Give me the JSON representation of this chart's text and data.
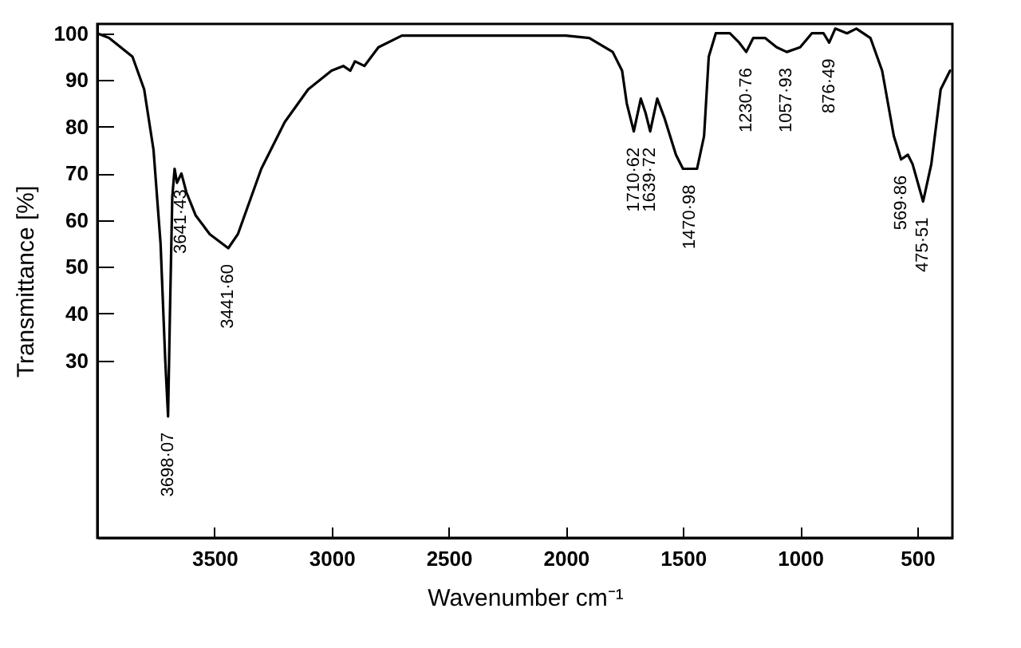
{
  "chart_data": {
    "type": "line",
    "xlabel": "Wavenumber cm⁻¹",
    "ylabel": "Transmittance [%]",
    "xlim": [
      4000,
      350
    ],
    "ylim": [
      -8,
      102
    ],
    "xticks": [
      3500,
      3000,
      2500,
      2000,
      1500,
      1000,
      500
    ],
    "yticks": [
      30,
      40,
      50,
      60,
      70,
      80,
      90,
      100
    ],
    "grid": false,
    "legend": false,
    "marker": "none",
    "line_style": "solid",
    "series": [
      {
        "color": "#000000",
        "x": [
          4000,
          3950,
          3850,
          3800,
          3760,
          3730,
          3710,
          3698,
          3690,
          3680,
          3670,
          3660,
          3641,
          3620,
          3580,
          3520,
          3441,
          3400,
          3350,
          3300,
          3200,
          3100,
          3000,
          2950,
          2920,
          2900,
          2860,
          2800,
          2700,
          2000,
          1900,
          1800,
          1760,
          1740,
          1710,
          1680,
          1660,
          1640,
          1610,
          1580,
          1530,
          1500,
          1440,
          1410,
          1390,
          1360,
          1300,
          1260,
          1230,
          1200,
          1150,
          1100,
          1057,
          1000,
          950,
          900,
          876,
          850,
          800,
          760,
          700,
          650,
          600,
          569,
          540,
          520,
          475,
          440,
          400,
          360
        ],
        "values": [
          100,
          99,
          95,
          88,
          75,
          55,
          30,
          18,
          40,
          65,
          71,
          68,
          70,
          66,
          61,
          57,
          54,
          57,
          64,
          71,
          81,
          88,
          92,
          93,
          92,
          94,
          93,
          97,
          99.5,
          99.5,
          99,
          96,
          92,
          85,
          79,
          86,
          83,
          79,
          86,
          82,
          74,
          71,
          71,
          78,
          95,
          100,
          100,
          98,
          96,
          99,
          99,
          97,
          96,
          97,
          100,
          100,
          98,
          101,
          100,
          101,
          99,
          92,
          78,
          73,
          74,
          72,
          64,
          72,
          88,
          92
        ]
      }
    ],
    "annotations": [
      {
        "text": "3698·07",
        "x": 3698,
        "y": 18
      },
      {
        "text": "3641·43",
        "x": 3641,
        "y": 70
      },
      {
        "text": "3441·60",
        "x": 3441,
        "y": 54
      },
      {
        "text": "1710·62",
        "x": 1710,
        "y": 79
      },
      {
        "text": "1639·72",
        "x": 1639,
        "y": 79
      },
      {
        "text": "1470·98",
        "x": 1470,
        "y": 71
      },
      {
        "text": "1230·76",
        "x": 1230,
        "y": 96
      },
      {
        "text": "1057·93",
        "x": 1057,
        "y": 96
      },
      {
        "text": "876·49",
        "x": 876,
        "y": 98
      },
      {
        "text": "569·86",
        "x": 569,
        "y": 73
      },
      {
        "text": "475·51",
        "x": 475,
        "y": 64
      }
    ]
  }
}
